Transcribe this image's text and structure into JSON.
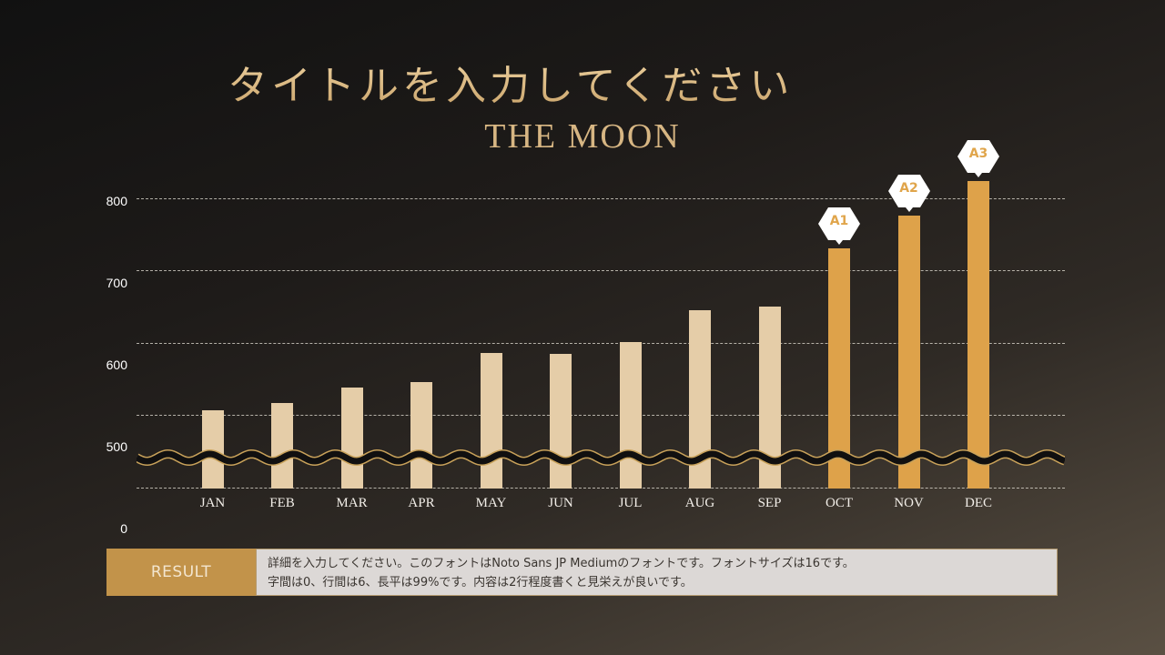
{
  "header": {
    "title_jp": "タイトルを入力してください",
    "title_en": "THE MOON"
  },
  "colors": {
    "bar_normal": "#e5cda8",
    "bar_highlight": "#dea24a",
    "badge_bg": "#ffffff",
    "badge_text": "#e0a54b",
    "result_label_bg": "#c2934a",
    "result_body_bg": "#dcd8d6"
  },
  "chart_data": {
    "type": "bar",
    "title": "THE MOON",
    "subtitle": "タイトルを入力してください",
    "xlabel": "",
    "ylabel": "",
    "categories": [
      "JAN",
      "FEB",
      "MAR",
      "APR",
      "MAY",
      "JUN",
      "JUL",
      "AUG",
      "SEP",
      "OCT",
      "NOV",
      "DEC"
    ],
    "values": [
      507,
      517,
      538,
      546,
      586,
      585,
      601,
      645,
      650,
      731,
      776,
      824
    ],
    "y_tick_labels": [
      "800",
      "700",
      "600",
      "500",
      "0"
    ],
    "ylim": [
      0,
      850
    ],
    "axis_break": "between 0 and 500 (wavy break line)",
    "grid": true,
    "highlighted": [
      {
        "category": "OCT",
        "label": "A1"
      },
      {
        "category": "NOV",
        "label": "A2"
      },
      {
        "category": "DEC",
        "label": "A3"
      }
    ],
    "legend": null
  },
  "result": {
    "label": "RESULT",
    "lines": [
      "詳細を入力してください。このフォントはNoto Sans JP Mediumのフォントです。フォントサイズは16です。",
      "字間は0、行間は6、長平は99%です。内容は2行程度書くと見栄えが良いです。"
    ]
  }
}
